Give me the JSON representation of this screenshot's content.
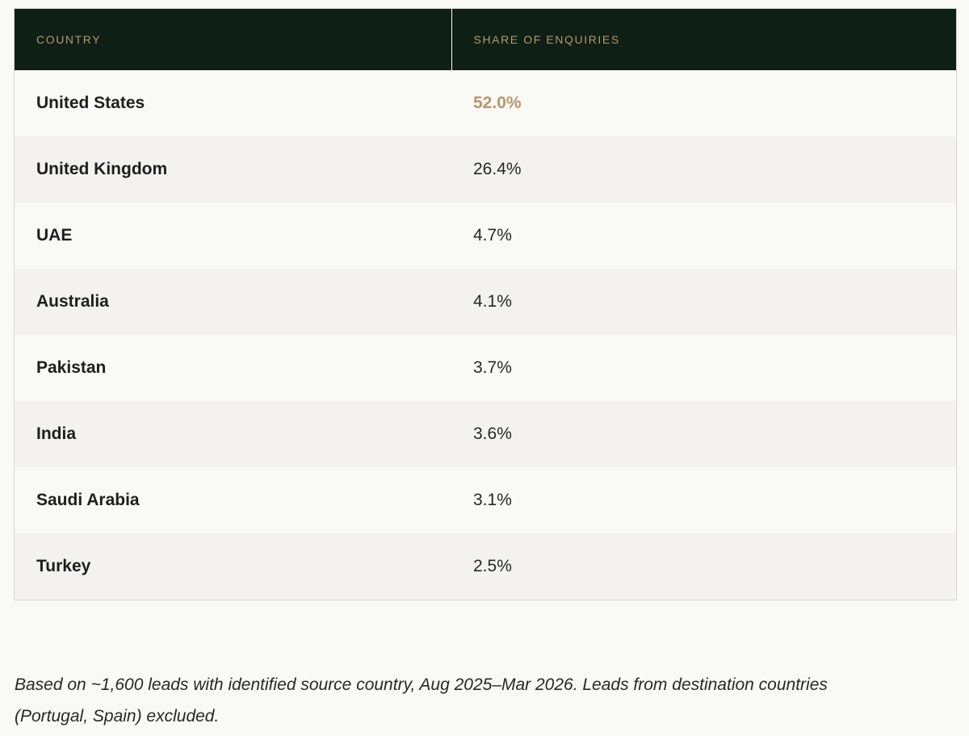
{
  "table": {
    "headers": {
      "country": "COUNTRY",
      "share": "SHARE OF ENQUIRIES"
    },
    "rows": [
      {
        "country": "United States",
        "share": "52.0%"
      },
      {
        "country": "United Kingdom",
        "share": "26.4%"
      },
      {
        "country": "UAE",
        "share": "4.7%"
      },
      {
        "country": "Australia",
        "share": "4.1%"
      },
      {
        "country": "Pakistan",
        "share": "3.7%"
      },
      {
        "country": "India",
        "share": "3.6%"
      },
      {
        "country": "Saudi Arabia",
        "share": "3.1%"
      },
      {
        "country": "Turkey",
        "share": "2.5%"
      }
    ]
  },
  "footnote": "Based on ~1,600 leads with identified source country, Aug 2025–Mar 2026. Leads from destination countries (Portugal, Spain) excluded.",
  "colors": {
    "header_bg": "#0e1f15",
    "header_text": "#b8966b",
    "highlight": "#b8966b",
    "stripe": "#f3f2ee"
  }
}
